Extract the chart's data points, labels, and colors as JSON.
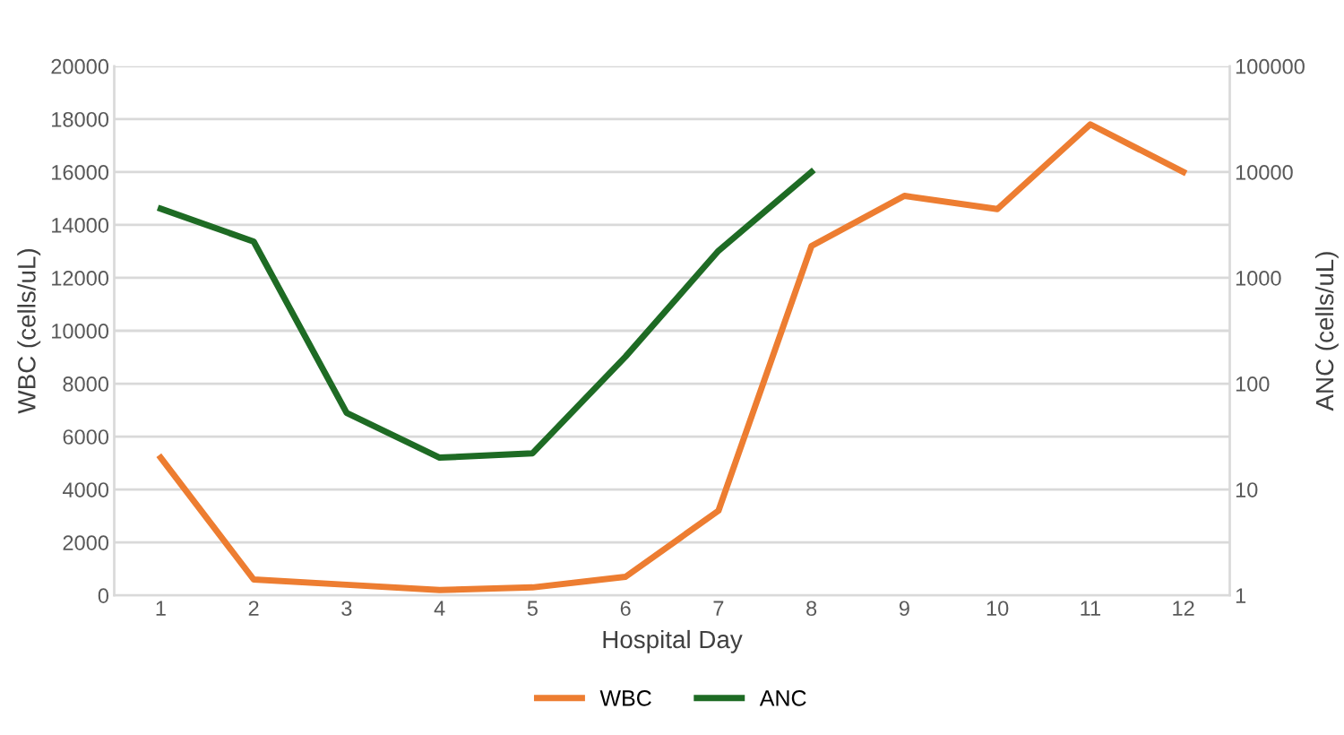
{
  "chart_data": {
    "type": "line",
    "xlabel": "Hospital Day",
    "ylabel": "WBC (cells/uL)",
    "y2label": "ANC (cells/uL)",
    "categories": [
      "1",
      "2",
      "3",
      "4",
      "5",
      "6",
      "7",
      "8",
      "9",
      "10",
      "11",
      "12"
    ],
    "series": [
      {
        "name": "WBC",
        "color": "#ed7d31",
        "values": [
          5200,
          600,
          400,
          200,
          300,
          700,
          3200,
          13200,
          15100,
          14600,
          17800,
          16000
        ]
      },
      {
        "name": "ANC",
        "color": "#1e6b24",
        "axis": "y2",
        "values": [
          4500,
          2200,
          53,
          20,
          22,
          180,
          1800,
          10000,
          null,
          null,
          null,
          null
        ]
      }
    ],
    "ylim": [
      0,
      20000
    ],
    "yticks": [
      0,
      2000,
      4000,
      6000,
      8000,
      10000,
      12000,
      14000,
      16000,
      18000,
      20000
    ],
    "log": "y2",
    "y2lim": [
      1,
      100000
    ],
    "y2ticks": [
      1,
      10,
      100,
      1000,
      10000,
      100000
    ],
    "grid": "y",
    "legend": "bottom",
    "marker": "none",
    "line_style": "solid"
  }
}
